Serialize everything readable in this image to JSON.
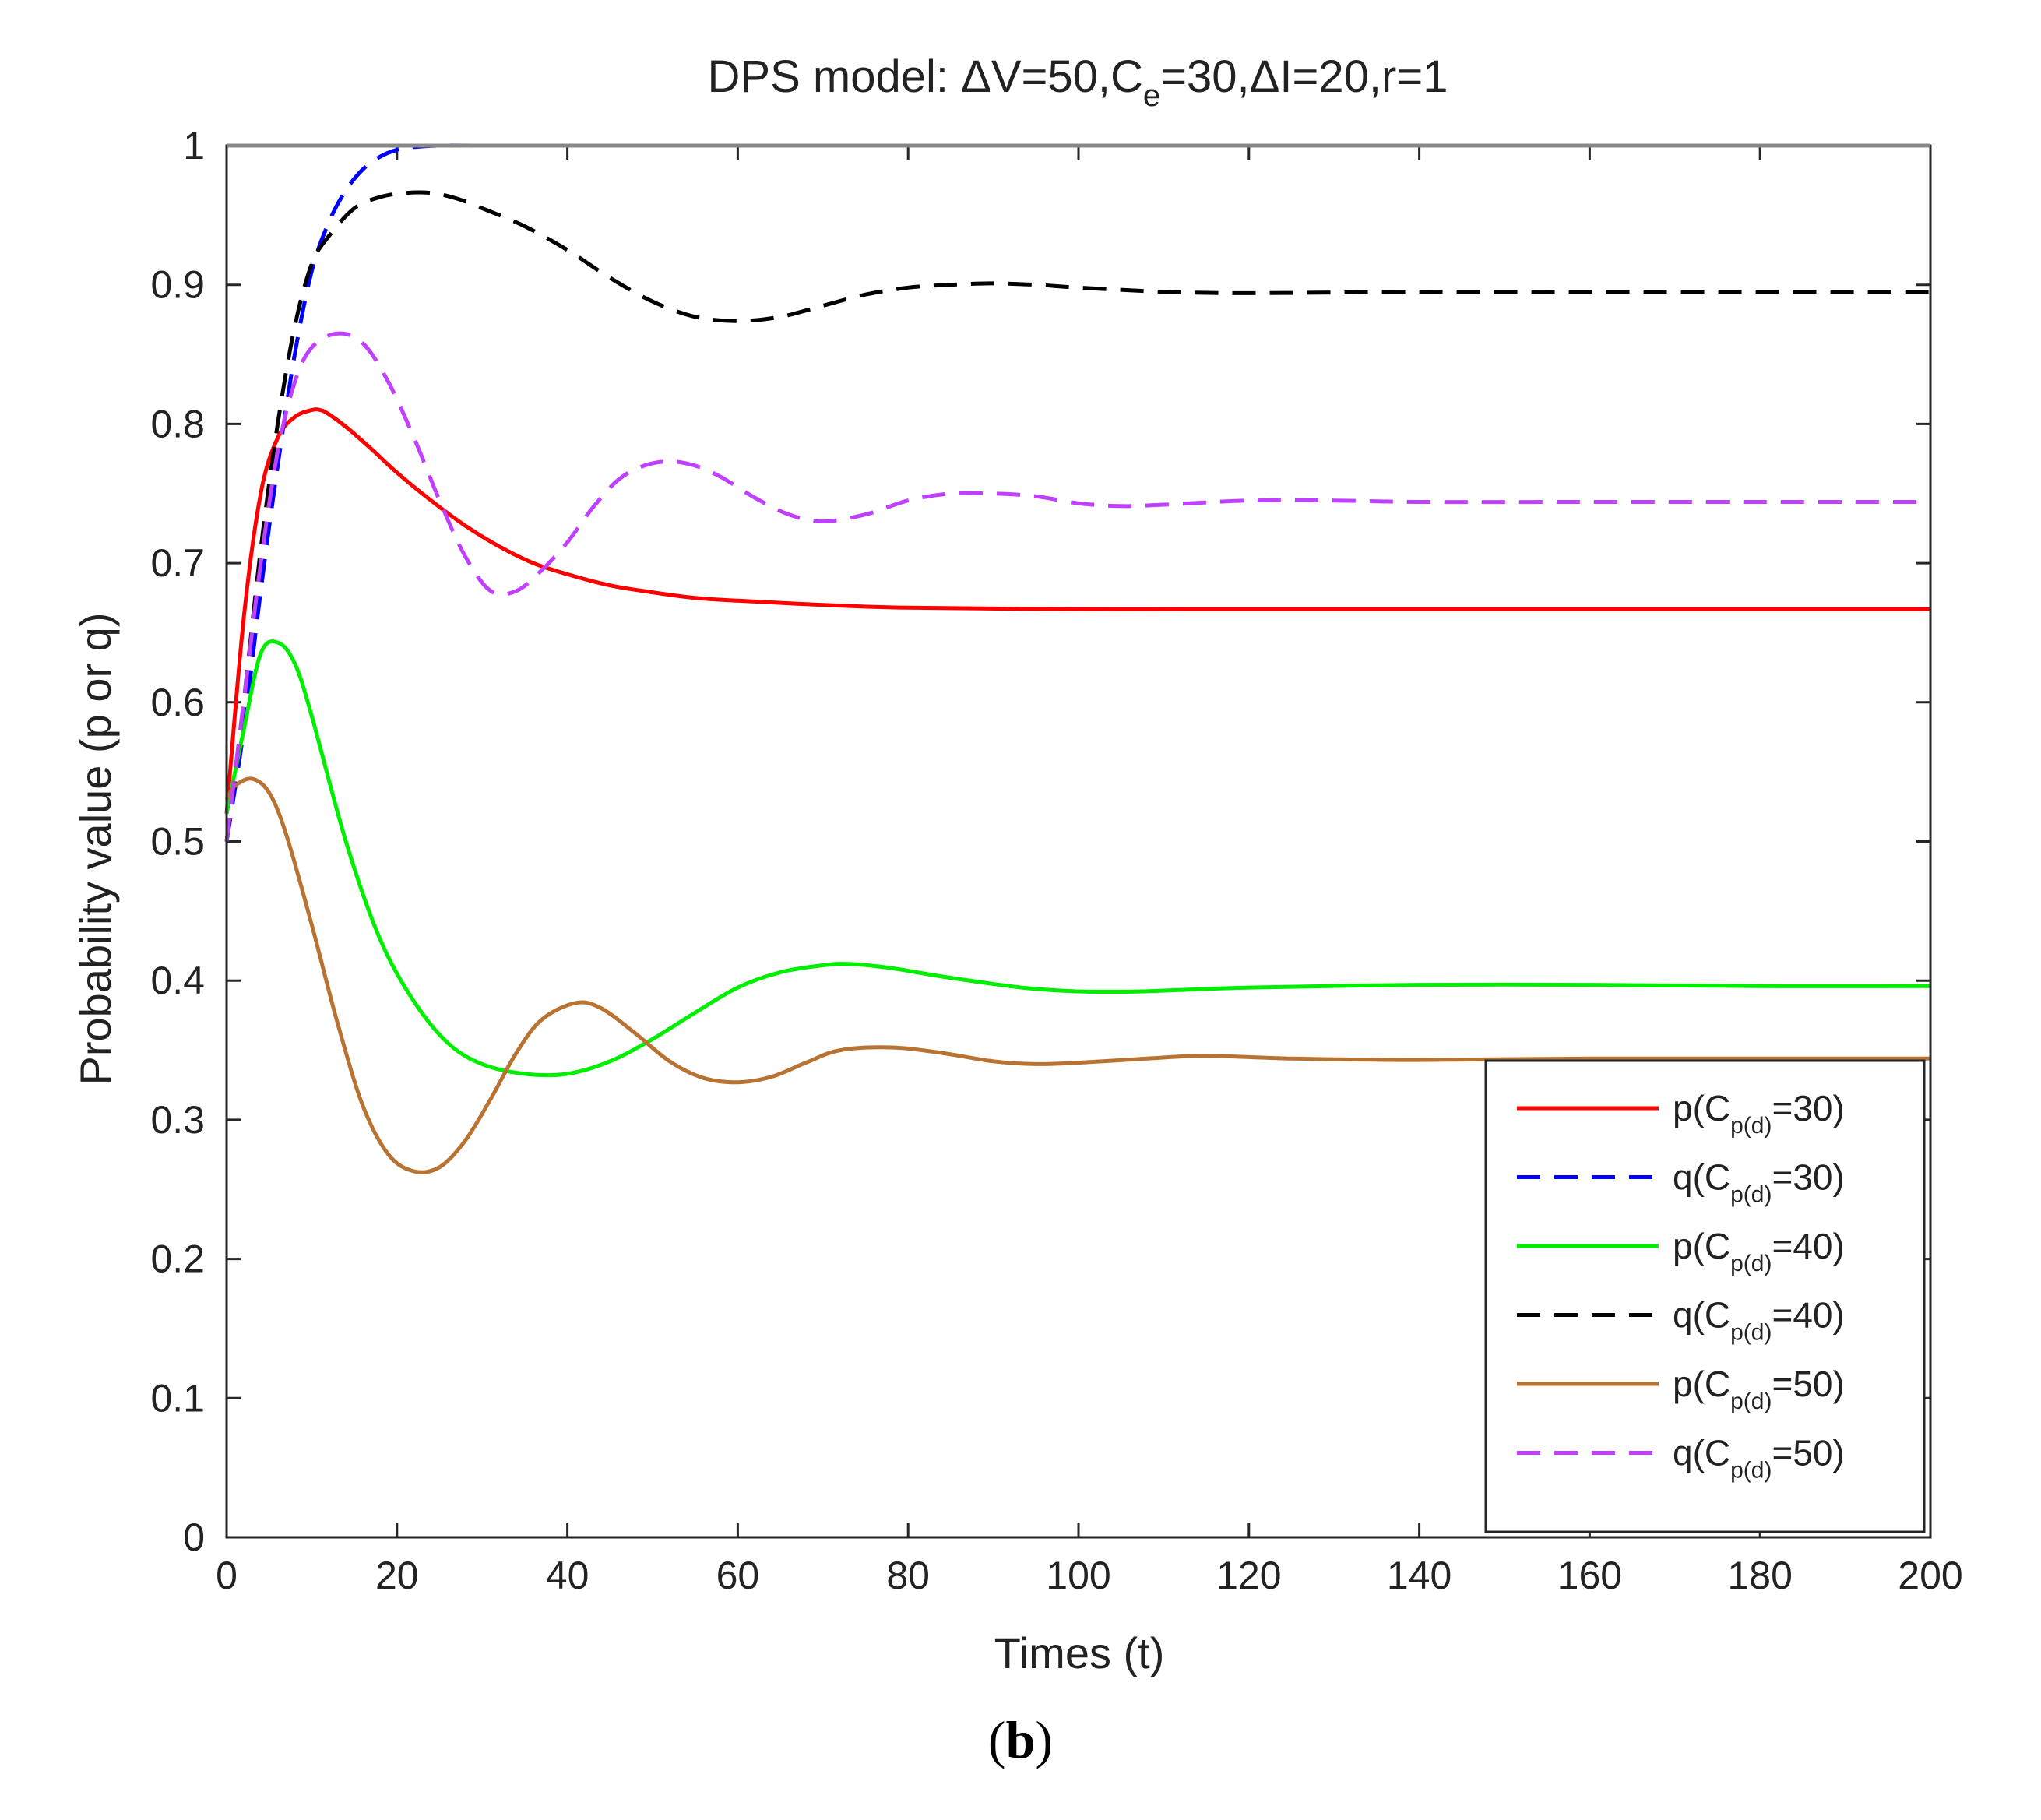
{
  "chart_data": {
    "type": "line",
    "title": "DPS model: ΔV=50,Ce=30,ΔI=20,r=1",
    "title_parts": {
      "main": "DPS model: ΔV=50,C",
      "subscript": "e",
      "rest": "=30,ΔI=20,r=1"
    },
    "xlabel": "Times (t)",
    "ylabel": "Probability value (p or q)",
    "xlim": [
      0,
      200
    ],
    "ylim": [
      0,
      1
    ],
    "xticks": [
      0,
      20,
      40,
      60,
      80,
      100,
      120,
      140,
      160,
      180,
      200
    ],
    "yticks": [
      0,
      0.1,
      0.2,
      0.3,
      0.4,
      0.5,
      0.6,
      0.7,
      0.8,
      0.9,
      1
    ],
    "ytick_labels": [
      "0",
      "0.1",
      "0.2",
      "0.3",
      "0.4",
      "0.5",
      "0.6",
      "0.7",
      "0.8",
      "0.9",
      "1"
    ],
    "grid": false,
    "legend_position": "bottom-right",
    "series": [
      {
        "name": "p(Cp(d)=30)",
        "legend_prefix": "p(C",
        "legend_sub": "p(d)",
        "legend_suffix": "=30)",
        "color": "#ff0000",
        "style": "solid",
        "x": [
          0,
          2,
          4,
          6,
          8,
          10,
          11,
          12,
          14,
          17,
          20,
          24,
          28,
          32,
          36,
          40,
          45,
          50,
          55,
          60,
          70,
          80,
          100,
          120,
          150,
          200
        ],
        "y": [
          0.52,
          0.66,
          0.75,
          0.79,
          0.805,
          0.81,
          0.81,
          0.807,
          0.798,
          0.782,
          0.765,
          0.745,
          0.727,
          0.712,
          0.7,
          0.692,
          0.684,
          0.679,
          0.675,
          0.673,
          0.67,
          0.668,
          0.667,
          0.667,
          0.667,
          0.667
        ]
      },
      {
        "name": "q(Cp(d)=30)",
        "legend_prefix": "q(C",
        "legend_sub": "p(d)",
        "legend_suffix": "=30)",
        "color": "#0000ff",
        "style": "dashed",
        "x": [
          0,
          2,
          4,
          6,
          8,
          10,
          12,
          14,
          16,
          18,
          20,
          22,
          25,
          30,
          40,
          60,
          100,
          200
        ],
        "y": [
          0.5,
          0.58,
          0.68,
          0.77,
          0.85,
          0.91,
          0.945,
          0.968,
          0.983,
          0.992,
          0.997,
          0.999,
          1.0,
          1.0,
          1.0,
          1.0,
          1.0,
          1.0
        ]
      },
      {
        "name": "p(Cp(d)=40)",
        "legend_prefix": "p(C",
        "legend_sub": "p(d)",
        "legend_suffix": "=40)",
        "color": "#00ee00",
        "style": "solid",
        "x": [
          0,
          2,
          4,
          6,
          8,
          10,
          14,
          18,
          22,
          26,
          30,
          35,
          40,
          45,
          50,
          55,
          60,
          65,
          70,
          73,
          78,
          85,
          95,
          105,
          120,
          140,
          160,
          180,
          200
        ],
        "y": [
          0.52,
          0.58,
          0.635,
          0.643,
          0.628,
          0.59,
          0.5,
          0.43,
          0.385,
          0.355,
          0.34,
          0.333,
          0.333,
          0.342,
          0.358,
          0.377,
          0.395,
          0.406,
          0.411,
          0.412,
          0.409,
          0.402,
          0.394,
          0.392,
          0.395,
          0.397,
          0.397,
          0.396,
          0.396
        ]
      },
      {
        "name": "q(Cp(d)=40)",
        "legend_prefix": "q(C",
        "legend_sub": "p(d)",
        "legend_suffix": "=40)",
        "color": "#000000",
        "style": "dashed",
        "x": [
          0,
          2,
          4,
          6,
          8,
          10,
          12,
          15,
          18,
          21,
          24,
          27,
          30,
          35,
          40,
          45,
          50,
          55,
          60,
          65,
          70,
          75,
          80,
          85,
          90,
          95,
          100,
          110,
          120,
          140,
          160,
          180,
          200
        ],
        "y": [
          0.5,
          0.6,
          0.71,
          0.8,
          0.87,
          0.915,
          0.935,
          0.955,
          0.963,
          0.966,
          0.966,
          0.962,
          0.955,
          0.942,
          0.925,
          0.905,
          0.888,
          0.877,
          0.874,
          0.877,
          0.885,
          0.893,
          0.898,
          0.9,
          0.901,
          0.9,
          0.898,
          0.895,
          0.894,
          0.895,
          0.895,
          0.895,
          0.895
        ]
      },
      {
        "name": "p(Cp(d)=50)",
        "legend_prefix": "p(C",
        "legend_sub": "p(d)",
        "legend_suffix": "=50)",
        "color": "#b87333",
        "style": "solid",
        "x": [
          0,
          1,
          3,
          5,
          7,
          10,
          13,
          16,
          19,
          22,
          25,
          28,
          31,
          34,
          37,
          41,
          44,
          48,
          52,
          56,
          60,
          64,
          68,
          72,
          78,
          84,
          90,
          95,
          100,
          108,
          115,
          125,
          140,
          160,
          180,
          200
        ],
        "y": [
          0.53,
          0.54,
          0.545,
          0.535,
          0.505,
          0.44,
          0.37,
          0.31,
          0.275,
          0.263,
          0.266,
          0.285,
          0.315,
          0.348,
          0.372,
          0.384,
          0.38,
          0.362,
          0.342,
          0.33,
          0.327,
          0.331,
          0.341,
          0.35,
          0.352,
          0.348,
          0.342,
          0.34,
          0.341,
          0.344,
          0.346,
          0.344,
          0.343,
          0.344,
          0.344,
          0.344
        ]
      },
      {
        "name": "q(Cp(d)=50)",
        "legend_prefix": "q(C",
        "legend_sub": "p(d)",
        "legend_suffix": "=50)",
        "color": "#bf40ff",
        "style": "dashed",
        "x": [
          0,
          2,
          4,
          6,
          8,
          10,
          13,
          16,
          19,
          22,
          25,
          28,
          31,
          34,
          37,
          40,
          43,
          46,
          49,
          52,
          55,
          58,
          62,
          66,
          70,
          75,
          80,
          85,
          90,
          95,
          100,
          105,
          110,
          120,
          130,
          140,
          160,
          180,
          200
        ],
        "y": [
          0.5,
          0.6,
          0.7,
          0.78,
          0.83,
          0.855,
          0.865,
          0.858,
          0.83,
          0.79,
          0.745,
          0.705,
          0.68,
          0.68,
          0.695,
          0.715,
          0.74,
          0.76,
          0.77,
          0.773,
          0.77,
          0.762,
          0.747,
          0.735,
          0.73,
          0.735,
          0.745,
          0.75,
          0.75,
          0.748,
          0.743,
          0.741,
          0.742,
          0.745,
          0.745,
          0.744,
          0.744,
          0.744,
          0.744
        ]
      }
    ]
  },
  "figure": {
    "sub_label": "b",
    "open_paren": "(",
    "close_paren": ")"
  }
}
